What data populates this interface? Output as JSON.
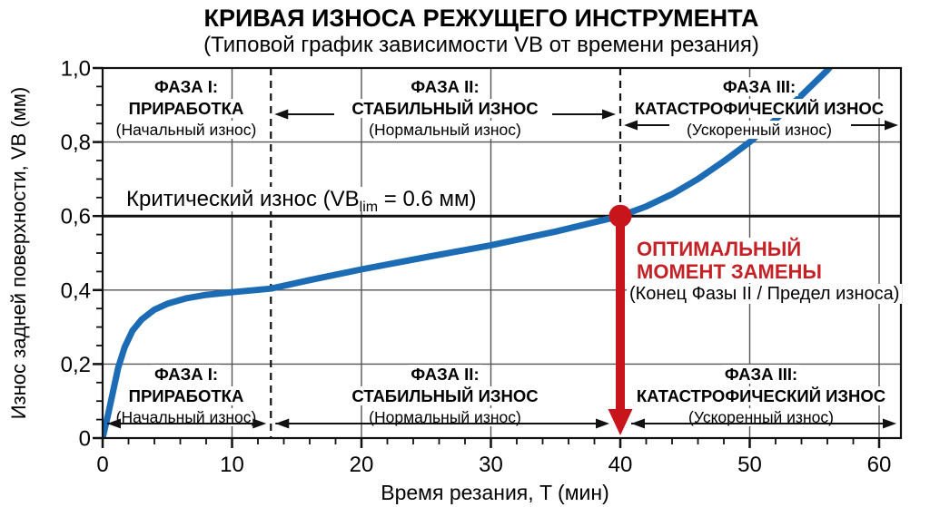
{
  "title": "КРИВАЯ ИЗНОСА РЕЖУЩЕГО ИНСТРУМЕНТА",
  "subtitle": "(Типовой график зависимости VB от времени резания)",
  "colors": {
    "curve": "#1c6cb5",
    "grid": "#555555",
    "axis": "#111111",
    "red": "#c8151b",
    "red_text": "#c42127"
  },
  "axes": {
    "x": {
      "title": "Время резания, T (мин)",
      "tick_labels": [
        "0",
        "10",
        "20",
        "30",
        "40",
        "50",
        "60"
      ]
    },
    "y": {
      "title": "Износ задней поверхности, VB (мм)",
      "tick_labels": [
        "0",
        "0,2",
        "0,4",
        "0,6",
        "0,8",
        "1,0"
      ]
    }
  },
  "phases": [
    {
      "name": "ФАЗА I:",
      "main": "ПРИРАБОТКА",
      "sub": "(Начальный износ)"
    },
    {
      "name": "ФАЗА II:",
      "main": "СТАБИЛЬНЫЙ ИЗНОС",
      "sub": "(Нормальный износ)"
    },
    {
      "name": "ФАЗА III:",
      "main": "КАТАСТРОФИЧЕСКИЙ ИЗНОС",
      "sub": "(Ускоренный износ)"
    }
  ],
  "critical": {
    "prefix": "Критический износ (VB",
    "sub": "lim",
    "suffix": " = 0.6 мм)"
  },
  "replacement": {
    "line1": "ОПТИМАЛЬНЫЙ",
    "line2": "МОМЕНТ ЗАМЕНЫ",
    "line3": "(Конец Фазы II / Предел износа)"
  },
  "chart_data": {
    "type": "line",
    "title": "КРИВАЯ ИЗНОСА РЕЖУЩЕГО ИНСТРУМЕНТА",
    "subtitle": "(Типовой график зависимости VB от времени резания)",
    "xlabel": "Время резания, T (мин)",
    "ylabel": "Износ задней поверхности, VB (мм)",
    "xlim": [
      0,
      62
    ],
    "ylim": [
      0,
      1.0
    ],
    "x_ticks": [
      0,
      10,
      20,
      30,
      40,
      50,
      60
    ],
    "y_ticks": [
      0,
      0.2,
      0.4,
      0.6,
      0.8,
      1.0
    ],
    "x_minor_step": 2,
    "y_minor_step": 0.05,
    "grid": true,
    "legend": "none",
    "series": [
      {
        "name": "VB (мм) — износ задней поверхности",
        "color": "#1c6cb5",
        "points": [
          [
            0,
            0
          ],
          [
            0.4,
            0.06
          ],
          [
            0.8,
            0.125
          ],
          [
            1.2,
            0.19
          ],
          [
            1.7,
            0.245
          ],
          [
            2.3,
            0.29
          ],
          [
            3,
            0.32
          ],
          [
            4,
            0.347
          ],
          [
            5,
            0.363
          ],
          [
            6.5,
            0.378
          ],
          [
            8,
            0.387
          ],
          [
            10,
            0.394
          ],
          [
            13,
            0.404
          ],
          [
            16,
            0.427
          ],
          [
            20,
            0.456
          ],
          [
            25,
            0.489
          ],
          [
            30,
            0.521
          ],
          [
            35,
            0.558
          ],
          [
            40,
            0.6
          ],
          [
            42,
            0.626
          ],
          [
            44,
            0.659
          ],
          [
            46,
            0.7
          ],
          [
            48,
            0.748
          ],
          [
            50,
            0.8
          ],
          [
            52,
            0.861
          ],
          [
            54,
            0.926
          ],
          [
            56,
            0.994
          ],
          [
            57.3,
            1.05
          ]
        ]
      }
    ],
    "critical_wear_vb": 0.6,
    "replacement_time_min": 40,
    "phase_boundaries_min": [
      13,
      40
    ],
    "phases": [
      {
        "label": "ФАЗА I: ПРИРАБОТКА (Начальный износ)",
        "range_min": [
          0,
          13
        ]
      },
      {
        "label": "ФАЗА II: СТАБИЛЬНЫЙ ИЗНОС (Нормальный износ)",
        "range_min": [
          13,
          40
        ]
      },
      {
        "label": "ФАЗА III: КАТАСТРОФИЧЕСКИЙ ИЗНОС (Ускоренный износ)",
        "range_min": [
          40,
          62
        ]
      }
    ]
  }
}
